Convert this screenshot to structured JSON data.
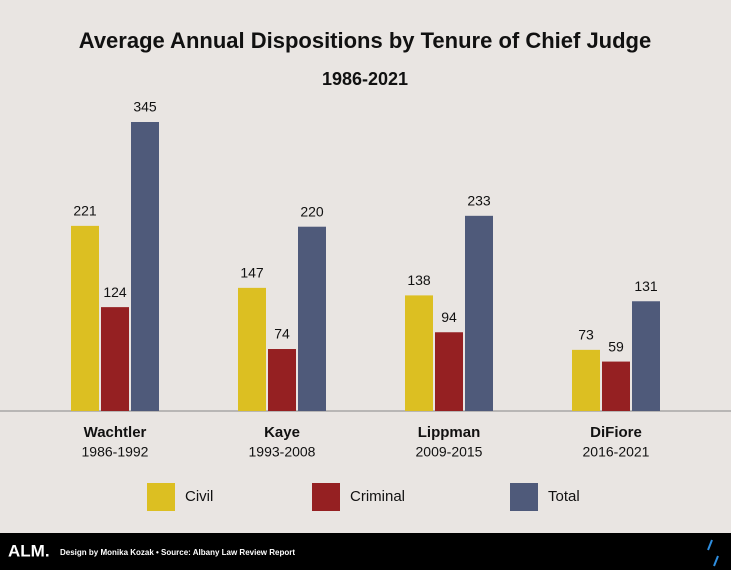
{
  "chart_data": {
    "type": "bar",
    "title": "Average Annual Dispositions by Tenure of Chief Judge",
    "subtitle": "1986-2021",
    "categories": [
      "Wachtler",
      "Kaye",
      "Lippman",
      "DiFiore"
    ],
    "category_periods": [
      "1986-1992",
      "1993-2008",
      "2009-2015",
      "2016-2021"
    ],
    "series": [
      {
        "name": "Civil",
        "color": "#dcbf22",
        "values": [
          221,
          147,
          138,
          73
        ]
      },
      {
        "name": "Criminal",
        "color": "#952022",
        "values": [
          124,
          74,
          94,
          59
        ]
      },
      {
        "name": "Total",
        "color": "#4f5a7a",
        "values": [
          345,
          220,
          233,
          131
        ]
      }
    ]
  },
  "footer": {
    "logo": "ALM.",
    "credit": "Design by Monika Kozak • Source: Albany Law Review Report"
  }
}
